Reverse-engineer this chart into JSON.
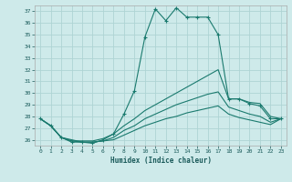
{
  "xlabel": "Humidex (Indice chaleur)",
  "background_color": "#ceeaea",
  "grid_color": "#aed4d4",
  "line_color": "#1a7a6e",
  "xlim": [
    -0.5,
    23.5
  ],
  "ylim": [
    25.5,
    37.5
  ],
  "yticks": [
    26,
    27,
    28,
    29,
    30,
    31,
    32,
    33,
    34,
    35,
    36,
    37
  ],
  "xticks": [
    0,
    1,
    2,
    3,
    4,
    5,
    6,
    7,
    8,
    9,
    10,
    11,
    12,
    13,
    14,
    15,
    16,
    17,
    18,
    19,
    20,
    21,
    22,
    23
  ],
  "series": [
    {
      "x": [
        0,
        1,
        2,
        3,
        4,
        5,
        6,
        7,
        8,
        9,
        10,
        11,
        12,
        13,
        14,
        15,
        16,
        17,
        18,
        19,
        20,
        21,
        22,
        23
      ],
      "y": [
        27.8,
        27.2,
        26.2,
        25.8,
        25.8,
        25.7,
        26.0,
        26.5,
        28.2,
        30.2,
        34.8,
        37.2,
        36.2,
        37.3,
        36.5,
        36.5,
        36.5,
        35.0,
        29.5,
        29.5,
        29.1,
        28.9,
        27.8,
        27.8
      ],
      "marker": "+",
      "markersize": 3.5,
      "linewidth": 0.8,
      "has_marker": true
    },
    {
      "x": [
        0,
        1,
        2,
        3,
        4,
        5,
        6,
        7,
        8,
        9,
        10,
        11,
        12,
        13,
        14,
        15,
        16,
        17,
        18,
        19,
        20,
        21,
        22,
        23
      ],
      "y": [
        27.8,
        27.2,
        26.2,
        25.9,
        25.9,
        25.9,
        26.1,
        26.5,
        27.2,
        27.8,
        28.5,
        29.0,
        29.5,
        30.0,
        30.5,
        31.0,
        31.5,
        32.0,
        29.5,
        29.5,
        29.2,
        29.1,
        28.0,
        27.8
      ],
      "marker": null,
      "markersize": 0,
      "linewidth": 0.8,
      "has_marker": false
    },
    {
      "x": [
        0,
        1,
        2,
        3,
        4,
        5,
        6,
        7,
        8,
        9,
        10,
        11,
        12,
        13,
        14,
        15,
        16,
        17,
        18,
        19,
        20,
        21,
        22,
        23
      ],
      "y": [
        27.8,
        27.2,
        26.2,
        25.9,
        25.8,
        25.8,
        25.9,
        26.2,
        26.8,
        27.2,
        27.8,
        28.2,
        28.6,
        29.0,
        29.3,
        29.6,
        29.9,
        30.1,
        28.8,
        28.5,
        28.2,
        28.0,
        27.5,
        27.8
      ],
      "marker": null,
      "markersize": 0,
      "linewidth": 0.8,
      "has_marker": false
    },
    {
      "x": [
        0,
        1,
        2,
        3,
        4,
        5,
        6,
        7,
        8,
        9,
        10,
        11,
        12,
        13,
        14,
        15,
        16,
        17,
        18,
        19,
        20,
        21,
        22,
        23
      ],
      "y": [
        27.8,
        27.2,
        26.2,
        26.0,
        25.8,
        25.8,
        25.9,
        26.0,
        26.4,
        26.8,
        27.2,
        27.5,
        27.8,
        28.0,
        28.3,
        28.5,
        28.7,
        28.9,
        28.2,
        27.9,
        27.7,
        27.5,
        27.3,
        27.8
      ],
      "marker": null,
      "markersize": 0,
      "linewidth": 0.8,
      "has_marker": false
    }
  ]
}
